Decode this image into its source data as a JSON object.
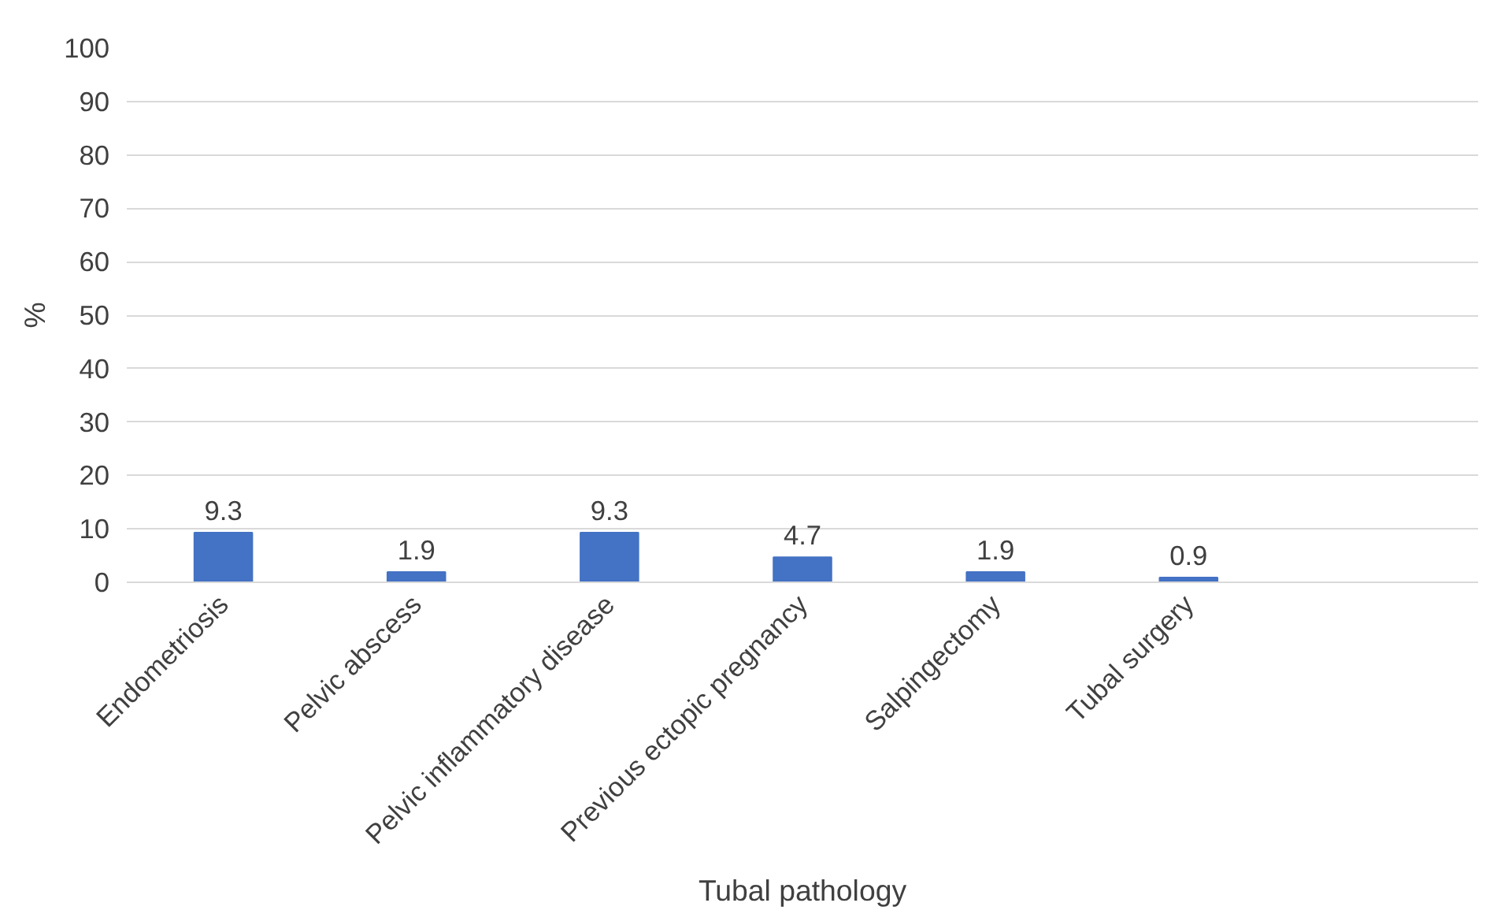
{
  "chart_data": {
    "type": "bar",
    "categories": [
      "Endometriosis",
      "Pelvic abscess",
      "Pelvic inflammatory disease",
      "Previous ectopic pregnancy",
      "Salpingectomy",
      "Tubal surgery",
      null
    ],
    "values": [
      9.3,
      1.9,
      9.3,
      4.7,
      1.9,
      0.9,
      null
    ],
    "color": "#4472c4",
    "xlabel": "Tubal pathology",
    "ylabel": "%",
    "ylim": [
      0,
      100
    ],
    "yticks": [
      0,
      10,
      20,
      30,
      40,
      50,
      60,
      70,
      80,
      90,
      100
    ],
    "grid": "y",
    "data_labels": true
  }
}
